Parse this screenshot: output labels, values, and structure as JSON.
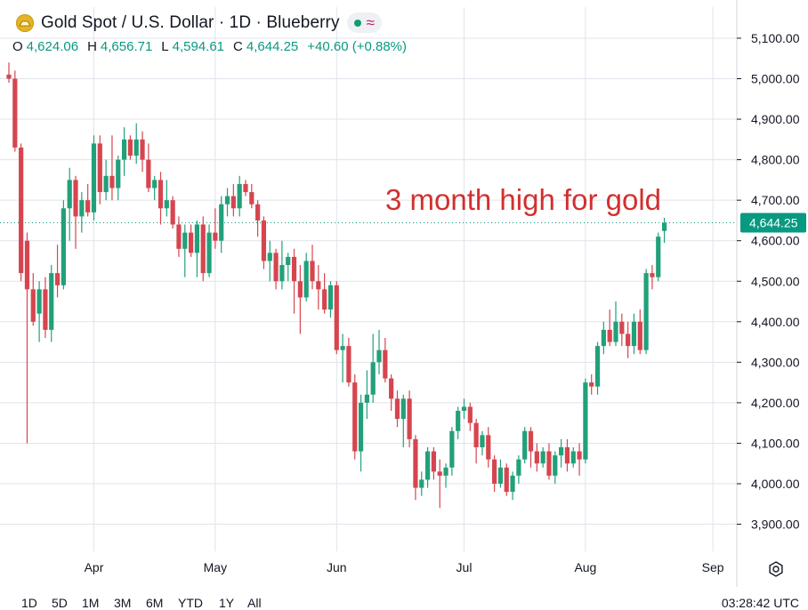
{
  "header": {
    "title": "Gold Spot / U.S. Dollar · 1D · Blueberry",
    "ohlc": {
      "o_label": "O",
      "o_value": "4,624.06",
      "h_label": "H",
      "h_value": "4,656.71",
      "l_label": "L",
      "l_value": "4,594.61",
      "c_label": "C",
      "c_value": "4,644.25",
      "change": "+40.60 (+0.88%)"
    }
  },
  "annotation": {
    "text": "3 month high for gold",
    "color": "#d32f2f"
  },
  "last_price_label": "4,644.25",
  "bottom": {
    "ranges": [
      "1D",
      "5D",
      "1M",
      "3M",
      "6M",
      "YTD",
      "1Y",
      "All"
    ],
    "time": "03:28:42 UTC"
  },
  "icons": {
    "logo": "gold-coin-icon",
    "settings": "gear-icon",
    "status": "market-open-dot-icon",
    "wave": "wave-icon"
  },
  "colors": {
    "up": "#22a07a",
    "down": "#d6454f",
    "price_line": "#089981",
    "grid": "#e0e3eb"
  },
  "chart_data": {
    "type": "candlestick",
    "title": "Gold Spot / U.S. Dollar · 1D · Blueberry",
    "ylim": [
      3850,
      5150
    ],
    "y_ticks": [
      3900,
      4000,
      4100,
      4200,
      4300,
      4400,
      4500,
      4600,
      4700,
      4800,
      4900,
      5000,
      5100
    ],
    "y_tick_labels": [
      "3,900.00",
      "4,000.00",
      "4,100.00",
      "4,200.00",
      "4,300.00",
      "4,400.00",
      "4,500.00",
      "4,600.00",
      "4,700.00",
      "4,800.00",
      "4,900.00",
      "5,000.00",
      "5,100.00"
    ],
    "x_ticks": [
      {
        "label": "Apr",
        "index": 14
      },
      {
        "label": "May",
        "index": 34
      },
      {
        "label": "Jun",
        "index": 54
      },
      {
        "label": "Jul",
        "index": 75
      },
      {
        "label": "Aug",
        "index": 95
      },
      {
        "label": "Sep",
        "index": 116
      }
    ],
    "last_price": 4644.25,
    "candles": [
      [
        5010,
        5040,
        4990,
        5000
      ],
      [
        5000,
        5020,
        4820,
        4830
      ],
      [
        4830,
        4840,
        4500,
        4520
      ],
      [
        4600,
        4620,
        4100,
        4480
      ],
      [
        4480,
        4520,
        4390,
        4400
      ],
      [
        4420,
        4500,
        4350,
        4480
      ],
      [
        4480,
        4510,
        4360,
        4380
      ],
      [
        4380,
        4540,
        4350,
        4520
      ],
      [
        4520,
        4590,
        4460,
        4490
      ],
      [
        4490,
        4700,
        4480,
        4680
      ],
      [
        4680,
        4780,
        4600,
        4750
      ],
      [
        4750,
        4760,
        4580,
        4660
      ],
      [
        4660,
        4720,
        4620,
        4700
      ],
      [
        4700,
        4740,
        4660,
        4670
      ],
      [
        4670,
        4860,
        4650,
        4840
      ],
      [
        4840,
        4860,
        4690,
        4720
      ],
      [
        4720,
        4800,
        4700,
        4760
      ],
      [
        4760,
        4860,
        4700,
        4730
      ],
      [
        4730,
        4810,
        4700,
        4800
      ],
      [
        4800,
        4880,
        4760,
        4850
      ],
      [
        4850,
        4860,
        4800,
        4810
      ],
      [
        4810,
        4890,
        4790,
        4850
      ],
      [
        4850,
        4870,
        4770,
        4800
      ],
      [
        4800,
        4840,
        4720,
        4730
      ],
      [
        4730,
        4760,
        4700,
        4750
      ],
      [
        4750,
        4770,
        4640,
        4680
      ],
      [
        4680,
        4750,
        4660,
        4700
      ],
      [
        4700,
        4710,
        4630,
        4640
      ],
      [
        4640,
        4660,
        4560,
        4580
      ],
      [
        4580,
        4640,
        4510,
        4620
      ],
      [
        4620,
        4640,
        4560,
        4570
      ],
      [
        4570,
        4650,
        4510,
        4640
      ],
      [
        4640,
        4660,
        4500,
        4520
      ],
      [
        4520,
        4640,
        4510,
        4620
      ],
      [
        4620,
        4680,
        4580,
        4600
      ],
      [
        4600,
        4710,
        4570,
        4690
      ],
      [
        4690,
        4730,
        4660,
        4710
      ],
      [
        4710,
        4740,
        4660,
        4680
      ],
      [
        4680,
        4760,
        4660,
        4740
      ],
      [
        4740,
        4750,
        4710,
        4720
      ],
      [
        4720,
        4740,
        4680,
        4690
      ],
      [
        4690,
        4700,
        4610,
        4650
      ],
      [
        4650,
        4660,
        4530,
        4550
      ],
      [
        4550,
        4600,
        4500,
        4570
      ],
      [
        4570,
        4580,
        4480,
        4500
      ],
      [
        4500,
        4600,
        4480,
        4540
      ],
      [
        4540,
        4570,
        4500,
        4560
      ],
      [
        4560,
        4580,
        4420,
        4500
      ],
      [
        4500,
        4540,
        4370,
        4460
      ],
      [
        4460,
        4570,
        4450,
        4550
      ],
      [
        4550,
        4590,
        4480,
        4500
      ],
      [
        4500,
        4540,
        4430,
        4480
      ],
      [
        4480,
        4520,
        4420,
        4430
      ],
      [
        4430,
        4500,
        4410,
        4490
      ],
      [
        4490,
        4500,
        4320,
        4330
      ],
      [
        4330,
        4370,
        4250,
        4340
      ],
      [
        4340,
        4360,
        4240,
        4250
      ],
      [
        4250,
        4270,
        4060,
        4080
      ],
      [
        4080,
        4220,
        4030,
        4200
      ],
      [
        4200,
        4280,
        4160,
        4220
      ],
      [
        4220,
        4370,
        4200,
        4300
      ],
      [
        4300,
        4380,
        4270,
        4330
      ],
      [
        4330,
        4360,
        4250,
        4260
      ],
      [
        4260,
        4270,
        4180,
        4210
      ],
      [
        4210,
        4230,
        4140,
        4160
      ],
      [
        4160,
        4220,
        4090,
        4210
      ],
      [
        4210,
        4230,
        4090,
        4110
      ],
      [
        4110,
        4120,
        3960,
        3990
      ],
      [
        3990,
        4030,
        3970,
        4010
      ],
      [
        4010,
        4090,
        3990,
        4080
      ],
      [
        4080,
        4090,
        4010,
        4030
      ],
      [
        4030,
        4060,
        3940,
        4020
      ],
      [
        4020,
        4050,
        3990,
        4040
      ],
      [
        4040,
        4140,
        4020,
        4130
      ],
      [
        4130,
        4190,
        4110,
        4180
      ],
      [
        4180,
        4210,
        4160,
        4190
      ],
      [
        4190,
        4200,
        4130,
        4150
      ],
      [
        4150,
        4160,
        4050,
        4090
      ],
      [
        4090,
        4130,
        4070,
        4120
      ],
      [
        4120,
        4140,
        4040,
        4060
      ],
      [
        4060,
        4070,
        3980,
        4000
      ],
      [
        4000,
        4060,
        3990,
        4040
      ],
      [
        4040,
        4050,
        3970,
        3980
      ],
      [
        3980,
        4030,
        3960,
        4020
      ],
      [
        4020,
        4070,
        4000,
        4060
      ],
      [
        4060,
        4140,
        4050,
        4130
      ],
      [
        4130,
        4140,
        4040,
        4080
      ],
      [
        4080,
        4100,
        4030,
        4050
      ],
      [
        4050,
        4090,
        4040,
        4080
      ],
      [
        4080,
        4100,
        4010,
        4020
      ],
      [
        4020,
        4080,
        4000,
        4070
      ],
      [
        4070,
        4110,
        4040,
        4090
      ],
      [
        4090,
        4110,
        4030,
        4050
      ],
      [
        4050,
        4090,
        4040,
        4080
      ],
      [
        4080,
        4100,
        4020,
        4060
      ],
      [
        4060,
        4260,
        4050,
        4250
      ],
      [
        4250,
        4270,
        4220,
        4240
      ],
      [
        4240,
        4350,
        4220,
        4340
      ],
      [
        4340,
        4400,
        4320,
        4380
      ],
      [
        4380,
        4430,
        4340,
        4350
      ],
      [
        4350,
        4450,
        4340,
        4400
      ],
      [
        4400,
        4420,
        4340,
        4370
      ],
      [
        4370,
        4400,
        4310,
        4340
      ],
      [
        4340,
        4420,
        4320,
        4400
      ],
      [
        4400,
        4430,
        4320,
        4330
      ],
      [
        4330,
        4530,
        4320,
        4520
      ],
      [
        4520,
        4540,
        4480,
        4510
      ],
      [
        4510,
        4620,
        4500,
        4610
      ],
      [
        4624.06,
        4656.71,
        4594.61,
        4644.25
      ]
    ]
  }
}
